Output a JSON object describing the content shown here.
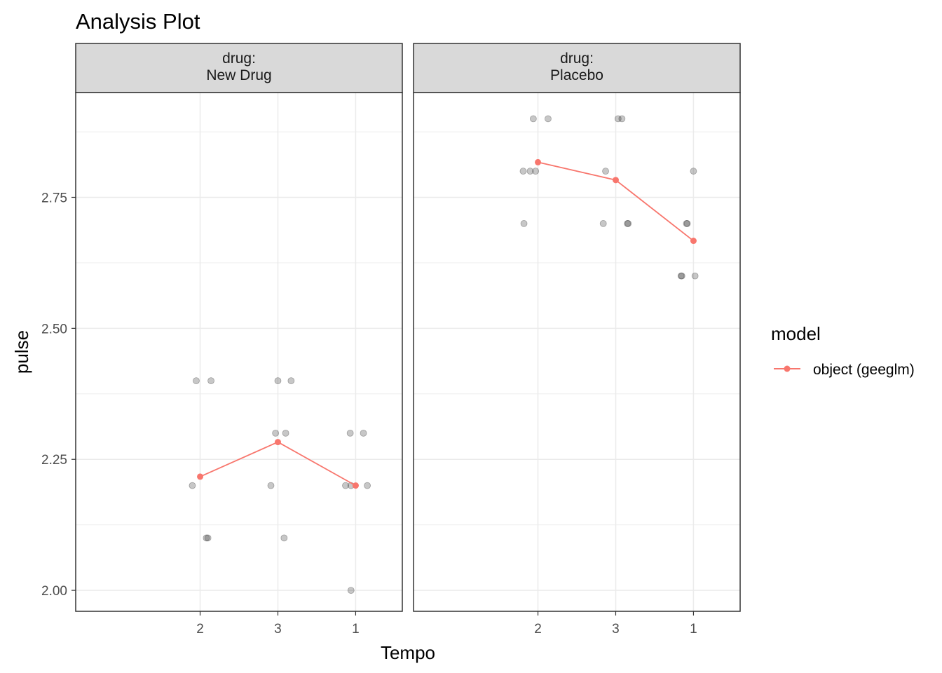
{
  "chart_data": {
    "type": "scatter",
    "title": "Analysis Plot",
    "xlabel": "Tempo",
    "ylabel": "pulse",
    "x_categories": [
      "2",
      "3",
      "1"
    ],
    "y_ticks": [
      2.0,
      2.25,
      2.5,
      2.75
    ],
    "y_tick_labels": [
      "2.00",
      "2.25",
      "2.50",
      "2.75"
    ],
    "ylim": [
      1.96,
      2.95
    ],
    "grid": true,
    "colors": {
      "model_line": "#f8766d",
      "raw_points": "#000000",
      "strip_fill": "#d9d9d9",
      "grid": "#ebebeb"
    },
    "legend": {
      "position": "right",
      "title": "model",
      "entries": [
        "object (geeglm)"
      ]
    },
    "panels": [
      {
        "strip_label": [
          "drug:",
          "New Drug"
        ],
        "model_series": {
          "name": "object (geeglm)",
          "values": [
            2.217,
            2.283,
            2.2
          ]
        },
        "raw_points": [
          {
            "x": 1.95,
            "y": 2.4
          },
          {
            "x": 2.14,
            "y": 2.4
          },
          {
            "x": 1.9,
            "y": 2.2
          },
          {
            "x": 2.08,
            "y": 2.1
          },
          {
            "x": 2.1,
            "y": 2.1
          },
          {
            "x": 3.0,
            "y": 2.4
          },
          {
            "x": 3.17,
            "y": 2.4
          },
          {
            "x": 2.97,
            "y": 2.3
          },
          {
            "x": 3.1,
            "y": 2.3
          },
          {
            "x": 2.91,
            "y": 2.2
          },
          {
            "x": 3.08,
            "y": 2.1
          },
          {
            "x": 3.93,
            "y": 2.3
          },
          {
            "x": 4.1,
            "y": 2.3
          },
          {
            "x": 3.87,
            "y": 2.2
          },
          {
            "x": 3.94,
            "y": 2.2
          },
          {
            "x": 4.15,
            "y": 2.2
          },
          {
            "x": 3.94,
            "y": 2.0
          }
        ]
      },
      {
        "strip_label": [
          "drug:",
          "Placebo"
        ],
        "model_series": {
          "name": "object (geeglm)",
          "values": [
            2.817,
            2.783,
            2.667
          ]
        },
        "raw_points": [
          {
            "x": 1.94,
            "y": 2.9
          },
          {
            "x": 2.13,
            "y": 2.9
          },
          {
            "x": 1.81,
            "y": 2.8
          },
          {
            "x": 1.9,
            "y": 2.8
          },
          {
            "x": 1.97,
            "y": 2.8
          },
          {
            "x": 1.82,
            "y": 2.7
          },
          {
            "x": 3.03,
            "y": 2.9
          },
          {
            "x": 3.08,
            "y": 2.9
          },
          {
            "x": 2.87,
            "y": 2.8
          },
          {
            "x": 2.84,
            "y": 2.7
          },
          {
            "x": 3.15,
            "y": 2.7
          },
          {
            "x": 3.16,
            "y": 2.7
          },
          {
            "x": 4.0,
            "y": 2.8
          },
          {
            "x": 3.91,
            "y": 2.7
          },
          {
            "x": 3.92,
            "y": 2.7
          },
          {
            "x": 3.84,
            "y": 2.6
          },
          {
            "x": 3.85,
            "y": 2.6
          },
          {
            "x": 4.02,
            "y": 2.6
          }
        ]
      }
    ]
  }
}
